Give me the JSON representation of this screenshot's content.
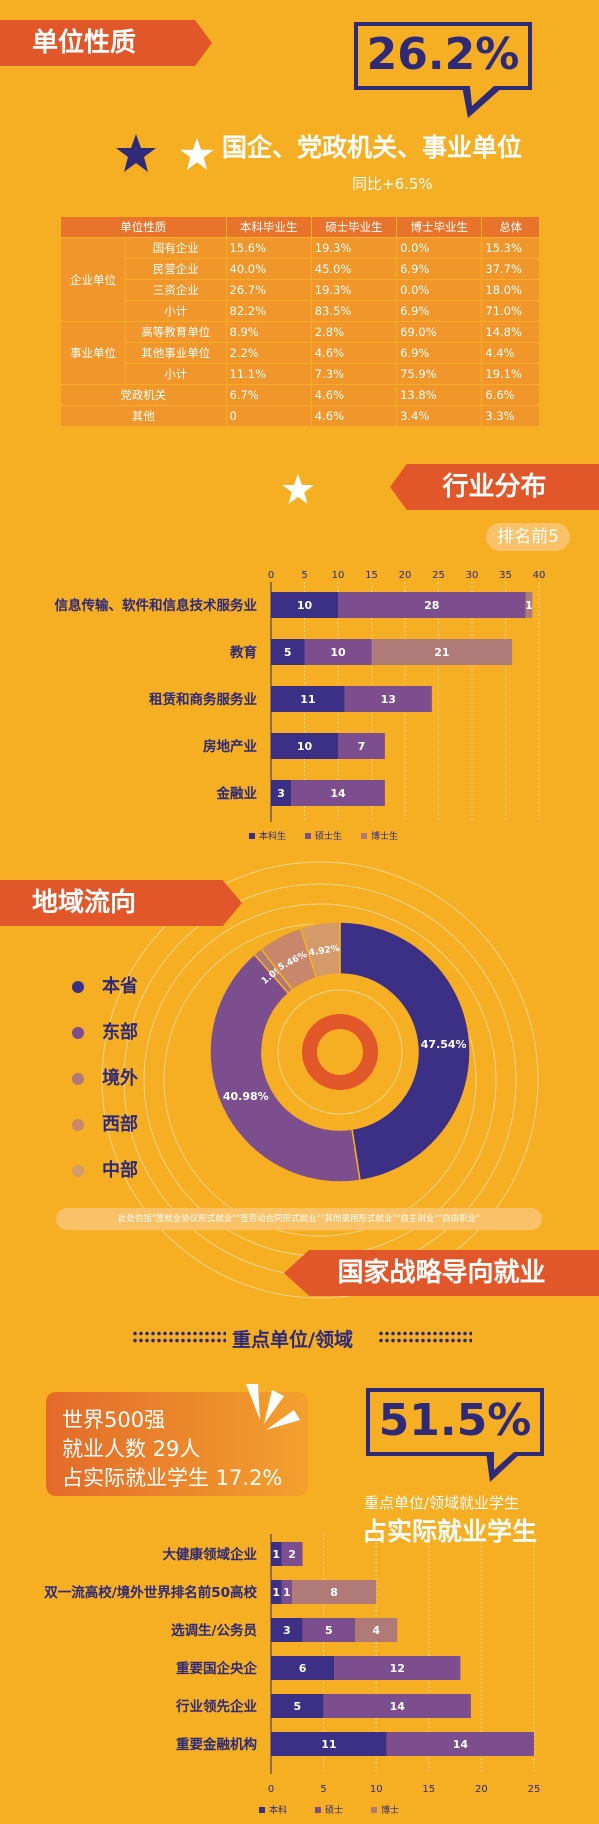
{
  "section_unit": {
    "banner": "单位性质",
    "big_percent": "26.2%",
    "headline": "国企、党政机关、事业单位",
    "sub": "同比+6.5%",
    "table": {
      "headers": [
        "单位性质",
        "本科毕业生",
        "硕士毕业生",
        "博士毕业生",
        "总体"
      ],
      "group1": "企业单位",
      "group2": "事业单位",
      "rows": [
        {
          "label": "国有企业",
          "v": [
            "15.6%",
            "19.3%",
            "0.0%",
            "15.3%"
          ]
        },
        {
          "label": "民营企业",
          "v": [
            "40.0%",
            "45.0%",
            "6.9%",
            "37.7%"
          ]
        },
        {
          "label": "三资企业",
          "v": [
            "26.7%",
            "19.3%",
            "0.0%",
            "18.0%"
          ]
        },
        {
          "label": "小计",
          "v": [
            "82.2%",
            "83.5%",
            "6.9%",
            "71.0%"
          ]
        },
        {
          "label": "高等教育单位",
          "v": [
            "8.9%",
            "2.8%",
            "69.0%",
            "14.8%"
          ]
        },
        {
          "label": "其他事业单位",
          "v": [
            "2.2%",
            "4.6%",
            "6.9%",
            "4.4%"
          ]
        },
        {
          "label": "小计",
          "v": [
            "11.1%",
            "7.3%",
            "75.9%",
            "19.1%"
          ]
        },
        {
          "label": "党政机关",
          "v": [
            "6.7%",
            "4.6%",
            "13.8%",
            "6.6%"
          ]
        },
        {
          "label": "其他",
          "v": [
            "0",
            "4.6%",
            "3.4%",
            "3.3%"
          ]
        }
      ]
    }
  },
  "section_industry": {
    "banner": "行业分布",
    "pill": "排名前5"
  },
  "section_region": {
    "banner": "地域流向",
    "note": "此处包括\"签就业协议形式就业\"\"签劳动合同形式就业\"\"其他录用形式就业\"\"自主创业\"\"自由职业\""
  },
  "section_strategy": {
    "banner": "国家战略导向就业",
    "subtitle": "重点单位/领域",
    "box_lines": [
      "世界500强",
      "就业人数 29人",
      "占实际就业学生 17.2%"
    ],
    "big_percent": "51.5%",
    "caption1": "重点单位/领域就业学生",
    "caption2": "占实际就业学生"
  },
  "colors": {
    "navy": "#3b2f86",
    "purple": "#7c4e8e",
    "mauve": "#b07a78",
    "brown": "#c8876a",
    "tan": "#d59a6a",
    "orange": "#e2572a",
    "background": "#f6ae23"
  },
  "chart_data": [
    {
      "type": "bar",
      "orientation": "horizontal",
      "stacked": true,
      "categories": [
        "信息传输、软件和信息技术服务业",
        "教育",
        "租赁和商务服务业",
        "房地产业",
        "金融业"
      ],
      "series": [
        {
          "name": "本科生",
          "values": [
            10,
            5,
            11,
            10,
            3
          ]
        },
        {
          "name": "硕士生",
          "values": [
            28,
            10,
            13,
            7,
            14
          ]
        },
        {
          "name": "博士生",
          "values": [
            1,
            21,
            0,
            0,
            0
          ]
        }
      ],
      "xlim": [
        0,
        40
      ],
      "xticks": [
        "0",
        "5",
        "10",
        "15",
        "20",
        "25",
        "30",
        "35",
        "40"
      ],
      "legend": "bottom"
    },
    {
      "type": "pie",
      "donut": true,
      "labels": [
        "本省",
        "东部",
        "境外",
        "西部",
        "中部"
      ],
      "values": [
        47.54,
        40.98,
        1.09,
        5.46,
        4.92
      ],
      "value_labels": [
        "47.54%",
        "40.98%",
        "1.09%",
        "5.46%",
        "4.92%"
      ],
      "legend": "left"
    },
    {
      "type": "bar",
      "orientation": "horizontal",
      "stacked": true,
      "categories": [
        "大健康领域企业",
        "双一流高校/境外世界排名前50高校",
        "选调生/公务员",
        "重要国企央企",
        "行业领先企业",
        "重要金融机构"
      ],
      "series": [
        {
          "name": "本科",
          "values": [
            1,
            1,
            3,
            6,
            5,
            11
          ]
        },
        {
          "name": "硕士",
          "values": [
            2,
            1,
            5,
            12,
            14,
            14
          ]
        },
        {
          "name": "博士",
          "values": [
            0,
            8,
            4,
            0,
            0,
            0
          ]
        }
      ],
      "xlim": [
        0,
        25
      ],
      "xticks": [
        "0",
        "5",
        "10",
        "15",
        "20",
        "25"
      ],
      "legend": "bottom"
    }
  ]
}
